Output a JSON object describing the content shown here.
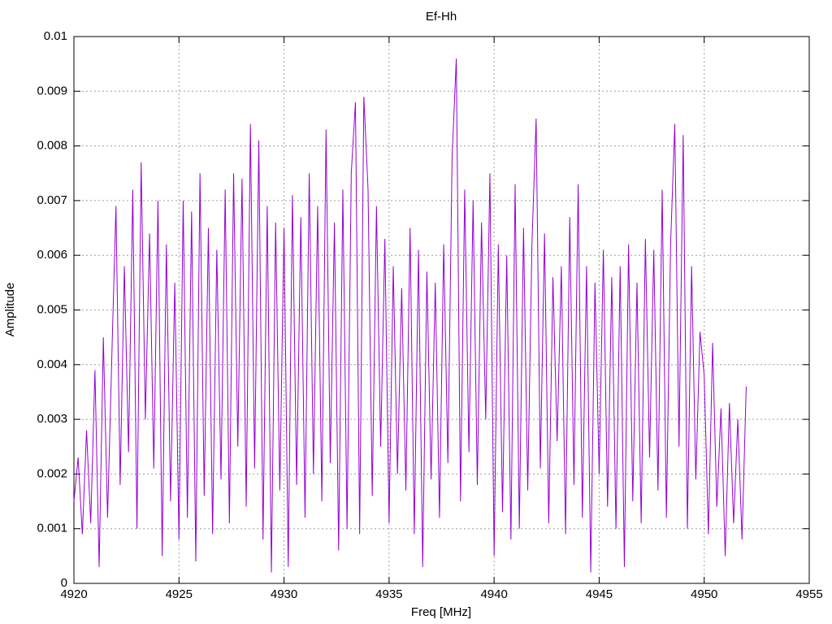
{
  "chart_data": {
    "type": "line",
    "title": "Ef-Hh",
    "x_label": "Freq [MHz]",
    "y_label": "Amplitude",
    "x": [
      4920,
      4920.2,
      4920.4,
      4920.6,
      4920.8,
      4921,
      4921.2,
      4921.4,
      4921.6,
      4921.8,
      4922,
      4922.2,
      4922.4,
      4922.6,
      4922.8,
      4923,
      4923.2,
      4923.4,
      4923.6,
      4923.8,
      4924,
      4924.2,
      4924.4,
      4924.6,
      4924.8,
      4925,
      4925.2,
      4925.4,
      4925.6,
      4925.8,
      4926,
      4926.2,
      4926.4,
      4926.6,
      4926.8,
      4927,
      4927.2,
      4927.4,
      4927.6,
      4927.8,
      4928,
      4928.2,
      4928.4,
      4928.6,
      4928.8,
      4929,
      4929.2,
      4929.4,
      4929.6,
      4929.8,
      4930,
      4930.2,
      4930.4,
      4930.6,
      4930.8,
      4931,
      4931.2,
      4931.4,
      4931.6,
      4931.8,
      4932,
      4932.2,
      4932.4,
      4932.6,
      4932.8,
      4933,
      4933.2,
      4933.4,
      4933.6,
      4933.8,
      4934,
      4934.2,
      4934.4,
      4934.6,
      4934.8,
      4935,
      4935.2,
      4935.4,
      4935.6,
      4935.8,
      4936,
      4936.2,
      4936.4,
      4936.6,
      4936.8,
      4937,
      4937.2,
      4937.4,
      4937.6,
      4937.8,
      4938,
      4938.2,
      4938.4,
      4938.6,
      4938.8,
      4939,
      4939.2,
      4939.4,
      4939.6,
      4939.8,
      4940,
      4940.2,
      4940.4,
      4940.6,
      4940.8,
      4941,
      4941.2,
      4941.4,
      4941.6,
      4941.8,
      4942,
      4942.2,
      4942.4,
      4942.6,
      4942.8,
      4943,
      4943.2,
      4943.4,
      4943.6,
      4943.8,
      4944,
      4944.2,
      4944.4,
      4944.6,
      4944.8,
      4945,
      4945.2,
      4945.4,
      4945.6,
      4945.8,
      4946,
      4946.2,
      4946.4,
      4946.6,
      4946.8,
      4947,
      4947.2,
      4947.4,
      4947.6,
      4947.8,
      4948,
      4948.2,
      4948.4,
      4948.6,
      4948.8,
      4949,
      4949.2,
      4949.4,
      4949.6,
      4949.8,
      4950,
      4950.2,
      4950.4,
      4950.6,
      4950.8,
      4951,
      4951.2,
      4951.4,
      4951.6,
      4951.8,
      4952
    ],
    "series": [
      {
        "color": "#9400d3",
        "values": [
          0.0015,
          0.0023,
          0.0009,
          0.0028,
          0.0011,
          0.0039,
          0.0003,
          0.0045,
          0.0012,
          0.0041,
          0.0069,
          0.0018,
          0.0058,
          0.0024,
          0.0072,
          0.001,
          0.0077,
          0.003,
          0.0064,
          0.0021,
          0.007,
          0.0005,
          0.0062,
          0.0015,
          0.0055,
          0.0008,
          0.007,
          0.0012,
          0.0068,
          0.0004,
          0.0075,
          0.0016,
          0.0065,
          0.0009,
          0.0061,
          0.0019,
          0.0072,
          0.0011,
          0.0075,
          0.0025,
          0.0074,
          0.0014,
          0.0084,
          0.0021,
          0.0081,
          0.0008,
          0.0069,
          0.0002,
          0.0066,
          0.0017,
          0.0065,
          0.0003,
          0.0071,
          0.0018,
          0.0067,
          0.0012,
          0.0075,
          0.002,
          0.0069,
          0.0015,
          0.0083,
          0.0022,
          0.0066,
          0.0006,
          0.0072,
          0.001,
          0.0075,
          0.0088,
          0.0009,
          0.0089,
          0.0072,
          0.0016,
          0.0069,
          0.0025,
          0.0063,
          0.0011,
          0.0058,
          0.002,
          0.0054,
          0.0017,
          0.0065,
          0.0009,
          0.0061,
          0.0003,
          0.0057,
          0.0019,
          0.0055,
          0.0012,
          0.0062,
          0.0022,
          0.0078,
          0.0096,
          0.0015,
          0.0072,
          0.0024,
          0.007,
          0.0018,
          0.0066,
          0.003,
          0.0075,
          0.0005,
          0.0062,
          0.0013,
          0.006,
          0.0008,
          0.0073,
          0.001,
          0.0065,
          0.0017,
          0.0062,
          0.0085,
          0.0021,
          0.0064,
          0.0011,
          0.0056,
          0.0026,
          0.0058,
          0.0009,
          0.0067,
          0.0018,
          0.0073,
          0.0012,
          0.0058,
          0.0002,
          0.0055,
          0.002,
          0.0061,
          0.0014,
          0.0056,
          0.001,
          0.0058,
          0.0003,
          0.0062,
          0.0015,
          0.0055,
          0.0011,
          0.0063,
          0.0023,
          0.0061,
          0.0017,
          0.0072,
          0.0012,
          0.0062,
          0.0084,
          0.0025,
          0.0082,
          0.001,
          0.0058,
          0.0019,
          0.0046,
          0.0038,
          0.0009,
          0.0044,
          0.0014,
          0.0032,
          0.0005,
          0.0033,
          0.0011,
          0.003,
          0.0008,
          0.0036
        ]
      }
    ],
    "xlim": [
      4920,
      4955
    ],
    "xticks": [
      4920,
      4925,
      4930,
      4935,
      4940,
      4945,
      4950,
      4955
    ],
    "ylim": [
      0,
      0.01
    ],
    "yticks": [
      0,
      0.001,
      0.002,
      0.003,
      0.004,
      0.005,
      0.006,
      0.007,
      0.008,
      0.009,
      0.01
    ],
    "grid": true
  }
}
